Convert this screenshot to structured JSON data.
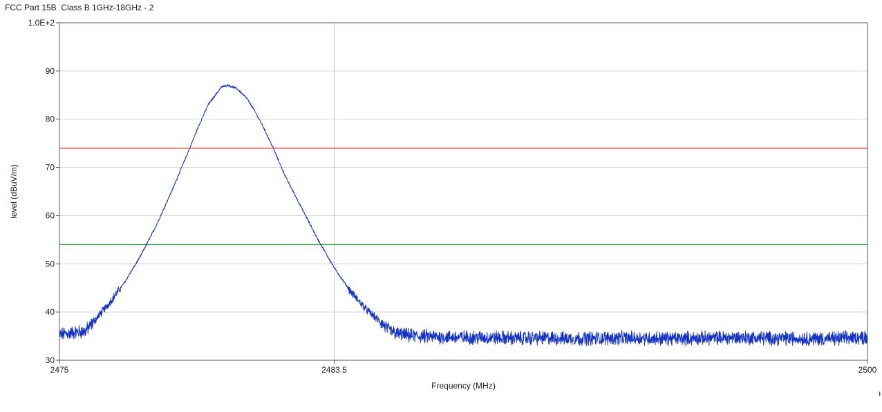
{
  "chart_data": {
    "type": "line",
    "title": "FCC Part 15B  Class B 1GHz-18GHz - 2",
    "xlabel": "Frequency (MHz)",
    "ylabel": "level (dBuV/m)",
    "xlim": [
      2475,
      2500
    ],
    "ylim": [
      30,
      100
    ],
    "x_ticks": [
      2475,
      2483.5,
      2500
    ],
    "x_tick_labels": [
      "2475",
      "2483.5",
      "2500"
    ],
    "y_ticks": [
      30,
      40,
      50,
      60,
      70,
      80,
      90,
      100
    ],
    "y_tick_labels": [
      "30",
      "40",
      "50",
      "60",
      "70",
      "80",
      "90",
      "1.0E+2"
    ],
    "grid": true,
    "series": [
      {
        "name": "",
        "color": "#1533c0",
        "x": [
          2475.0,
          2475.5,
          2475.8,
          2476.0,
          2476.5,
          2477.0,
          2477.5,
          2478.0,
          2478.5,
          2479.0,
          2479.3,
          2479.6,
          2480.0,
          2480.2,
          2480.5,
          2480.8,
          2481.0,
          2481.3,
          2481.6,
          2482.0,
          2482.5,
          2483.0,
          2483.5,
          2484.0,
          2484.5,
          2485.0,
          2485.2,
          2485.5,
          2486.0,
          2487.0,
          2488.0,
          2489.0,
          2490.0,
          2491.0,
          2492.0,
          2493.0,
          2494.0,
          2495.0,
          2496.0,
          2497.0,
          2498.0,
          2499.0,
          2500.0
        ],
        "values": [
          35.3,
          35.8,
          36.0,
          37.5,
          41.5,
          46.0,
          51.5,
          58.0,
          65.5,
          73.5,
          78.5,
          83.0,
          86.6,
          87.1,
          86.3,
          84.3,
          82.2,
          78.5,
          74.2,
          68.0,
          61.5,
          55.0,
          49.2,
          44.3,
          40.5,
          37.5,
          36.2,
          35.4,
          35.0,
          34.8,
          34.7,
          34.6,
          34.6,
          34.5,
          34.6,
          34.6,
          34.5,
          34.6,
          34.7,
          34.6,
          34.5,
          34.5,
          34.8
        ]
      }
    ],
    "limit_lines": [
      {
        "name": "",
        "value": 74,
        "color": "#e8281e"
      },
      {
        "name": "",
        "value": 54,
        "color": "#1fae2a"
      }
    ],
    "vertical_marker": {
      "value": 2483.5,
      "color": "#c8c8c8"
    }
  },
  "colors": {
    "grid": "#d3d3d3",
    "axis": "#555555",
    "trace": "#1533c0"
  },
  "corner_mark": "ᵻ"
}
